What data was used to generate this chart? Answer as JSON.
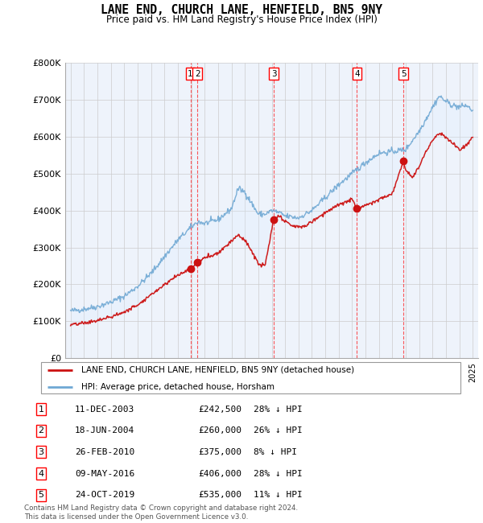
{
  "title": "LANE END, CHURCH LANE, HENFIELD, BN5 9NY",
  "subtitle": "Price paid vs. HM Land Registry's House Price Index (HPI)",
  "ylim": [
    0,
    800000
  ],
  "yticks": [
    0,
    100000,
    200000,
    300000,
    400000,
    500000,
    600000,
    700000,
    800000
  ],
  "ytick_labels": [
    "£0",
    "£100K",
    "£200K",
    "£300K",
    "£400K",
    "£500K",
    "£600K",
    "£700K",
    "£800K"
  ],
  "hpi_color": "#6fa8d4",
  "hpi_fill_color": "#ddeeff",
  "property_color": "#cc1111",
  "transactions": [
    {
      "num": 1,
      "date_yr": 2003.94,
      "price": 242500,
      "hpi_pct": "28%",
      "label": "11-DEC-2003",
      "price_str": "£242,500"
    },
    {
      "num": 2,
      "date_yr": 2004.46,
      "price": 260000,
      "hpi_pct": "26%",
      "label": "18-JUN-2004",
      "price_str": "£260,000"
    },
    {
      "num": 3,
      "date_yr": 2010.15,
      "price": 375000,
      "hpi_pct": "8%",
      "label": "26-FEB-2010",
      "price_str": "£375,000"
    },
    {
      "num": 4,
      "date_yr": 2016.36,
      "price": 406000,
      "hpi_pct": "28%",
      "label": "09-MAY-2016",
      "price_str": "£406,000"
    },
    {
      "num": 5,
      "date_yr": 2019.82,
      "price": 535000,
      "hpi_pct": "11%",
      "label": "24-OCT-2019",
      "price_str": "£535,000"
    }
  ],
  "legend_property": "LANE END, CHURCH LANE, HENFIELD, BN5 9NY (detached house)",
  "legend_hpi": "HPI: Average price, detached house, Horsham",
  "footer": "Contains HM Land Registry data © Crown copyright and database right 2024.\nThis data is licensed under the Open Government Licence v3.0.",
  "chart_bg": "#eef3fb"
}
